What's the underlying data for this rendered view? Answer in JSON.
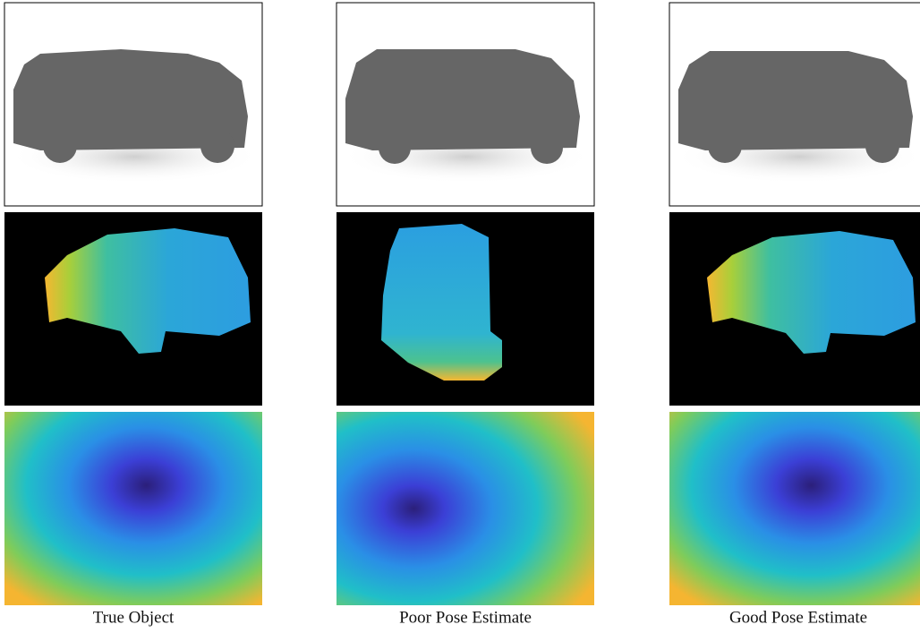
{
  "columns": [
    {
      "caption": "True Object"
    },
    {
      "caption": "Poor Pose Estimate"
    },
    {
      "caption": "Good Pose Estimate"
    }
  ]
}
